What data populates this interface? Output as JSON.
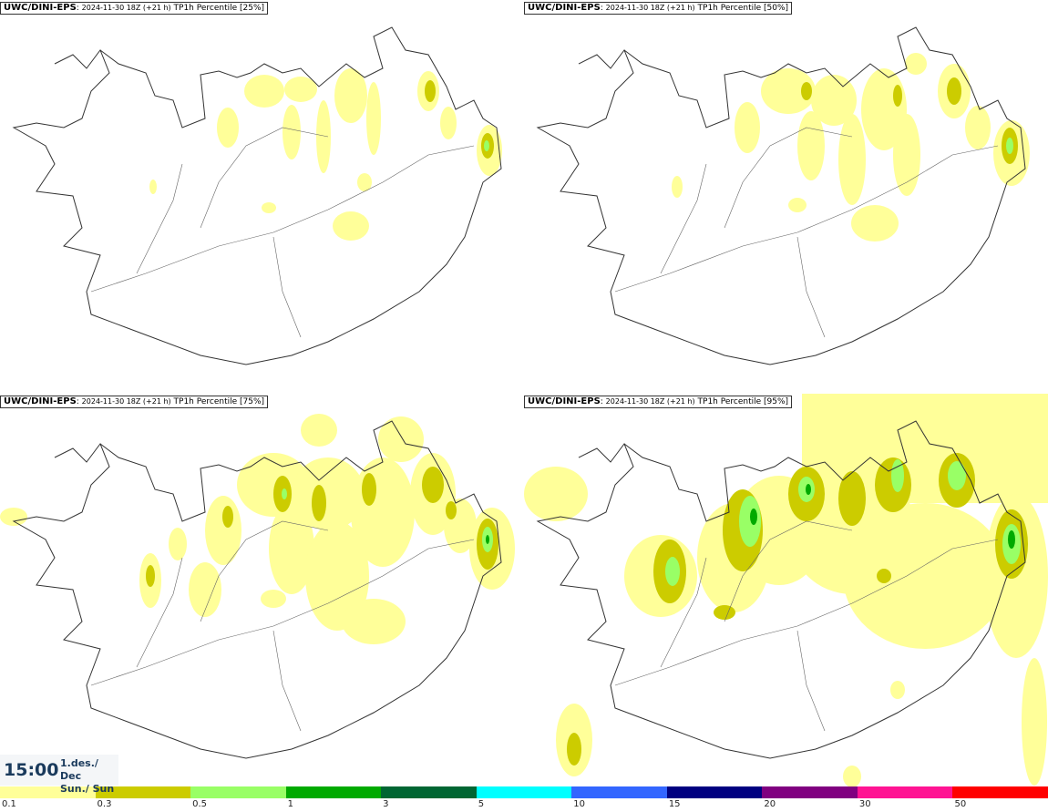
{
  "panels": [
    {
      "model": "UWC/DINI-EPS",
      "run": "2024-11-30 18Z (+21 h)",
      "field": "TP1h Percentile [25%]"
    },
    {
      "model": "UWC/DINI-EPS",
      "run": "2024-11-30 18Z (+21 h)",
      "field": "TP1h Percentile [50%]"
    },
    {
      "model": "UWC/DINI-EPS",
      "run": "2024-11-30 18Z (+21 h)",
      "field": "TP1h Percentile [75%]"
    },
    {
      "model": "UWC/DINI-EPS",
      "run": "2024-11-30 18Z (+21 h)",
      "field": "TP1h Percentile [95%]"
    }
  ],
  "valid_time": {
    "time": "15:00",
    "date_line1": "1.des./ Dec",
    "date_line2": "Sun./ Sun"
  },
  "legend": {
    "colors": [
      "#ffff99",
      "#cccc00",
      "#99ff66",
      "#00aa00",
      "#006633",
      "#00ffff",
      "#3366ff",
      "#000080",
      "#800080",
      "#ff1493",
      "#ff0000"
    ],
    "ticks": [
      "0.1",
      "0.3",
      "0.5",
      "1",
      "3",
      "5",
      "10",
      "15",
      "20",
      "30",
      "50"
    ]
  },
  "fill_colors": {
    "light": "#ffff99",
    "mid": "#cccc00",
    "high": "#99ff66",
    "peak": "#00aa00"
  }
}
